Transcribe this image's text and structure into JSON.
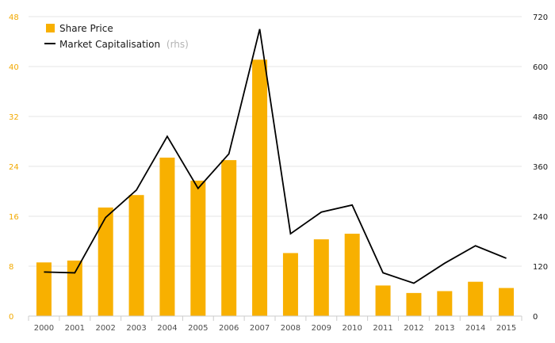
{
  "colors": {
    "share_price": "#f8b000",
    "market_cap": "#000000",
    "left_axis": "#f2a900",
    "right_axis": "#1a1a1a",
    "grid": "#e6e6e6"
  },
  "legend": {
    "share_price_label": "Share Price",
    "market_cap_label": "Market Capitalisation",
    "market_cap_suffix": "(rhs)"
  },
  "chart_data": {
    "type": "bar",
    "categories": [
      "2000",
      "2001",
      "2002",
      "2003",
      "2004",
      "2005",
      "2006",
      "2007",
      "2008",
      "2009",
      "2010",
      "2011",
      "2012",
      "2013",
      "2014",
      "2015"
    ],
    "series": [
      {
        "name": "Share Price",
        "type": "bar",
        "axis": "left",
        "values": [
          8.6,
          8.9,
          17.4,
          19.4,
          25.4,
          21.7,
          25.0,
          41.1,
          10.1,
          12.3,
          13.2,
          4.9,
          3.7,
          4.0,
          5.5,
          4.5
        ]
      },
      {
        "name": "Market Capitalisation",
        "type": "line",
        "axis": "right",
        "values": [
          106,
          104,
          237,
          303,
          432,
          307,
          390,
          690,
          198,
          250,
          267,
          104,
          79,
          127,
          169,
          139
        ]
      }
    ],
    "y_left": {
      "ticks": [
        "0",
        "8",
        "16",
        "24",
        "32",
        "40",
        "48"
      ],
      "ylim": [
        0,
        48
      ]
    },
    "y_right": {
      "ticks": [
        "0",
        "120",
        "240",
        "360",
        "480",
        "600",
        "720"
      ],
      "ylim": [
        0,
        720
      ]
    },
    "grid": true,
    "legend_position": "top-left"
  }
}
